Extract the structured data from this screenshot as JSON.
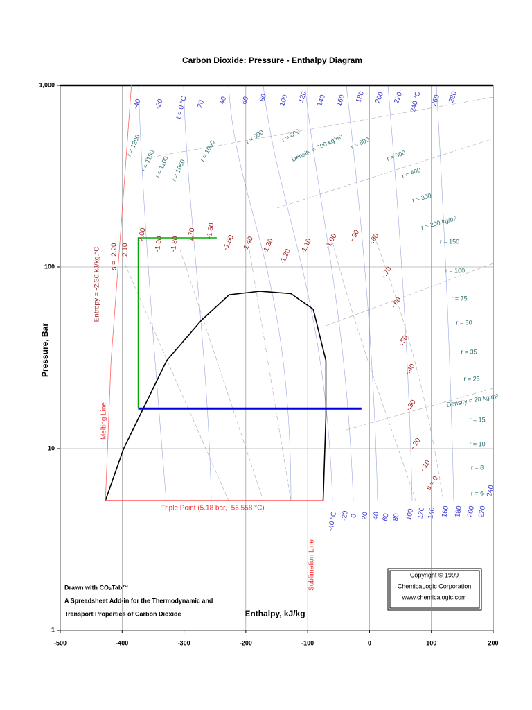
{
  "chart_data": {
    "type": "line",
    "title": "Carbon Dioxide: Pressure - Enthalpy Diagram",
    "x_label": "Enthalpy, kJ/kg",
    "y_label": "Pressure, Bar",
    "log_y": true,
    "grid": true,
    "xlim": [
      -500,
      200
    ],
    "ylim": [
      1,
      1000
    ],
    "xticks": [
      -500,
      -400,
      -300,
      -200,
      -100,
      0,
      100,
      200
    ],
    "yticks": [
      1,
      10,
      100,
      {
        "value": 1000,
        "label": "1,000"
      }
    ],
    "series": [
      {
        "color": "#000000",
        "x": [
          -427,
          -397.5,
          -328,
          -272,
          -227,
          -177,
          -127,
          -91,
          -70.5,
          -70.5,
          -75
        ],
        "values": [
          5.18,
          10,
          30.5,
          50.8,
          70.3,
          73.5,
          71.3,
          58.5,
          30.5,
          15.1,
          5.18
        ]
      },
      {
        "color": "#0000dd",
        "x": [
          -374,
          -13
        ],
        "values": [
          16.6,
          16.6
        ]
      },
      {
        "color": "#00aa00",
        "x": [
          -374,
          -374,
          -247
        ],
        "values": [
          16.6,
          144.6,
          144.6
        ]
      },
      {
        "color": "#ff3333",
        "x": [
          -427,
          -75
        ],
        "values": [
          5.18,
          5.18
        ]
      },
      {
        "color": "#ff6666",
        "x": [
          -427,
          -418,
          -400,
          -385
        ],
        "values": [
          5.18,
          30,
          200,
          1000
        ]
      }
    ],
    "isotherm_labels_top": [
      "-40",
      "-20",
      "t = 0 °C",
      "20",
      "40",
      "60",
      "80",
      "100",
      "120",
      "140",
      "160",
      "180",
      "200",
      "220",
      "240 °C",
      "260",
      "280"
    ],
    "isotherm_labels_bottom": [
      "-40 °C",
      "-20",
      "0",
      "20",
      "40",
      "60",
      "80",
      "100",
      "120",
      "140",
      "160",
      "180",
      "200",
      "220",
      "240"
    ],
    "density_labels": [
      "r = 1200",
      "r = 1150",
      "r = 1100",
      "r = 1050",
      "r = 1000",
      "r = 900",
      "r = 800",
      "Density = 700 kg/m³",
      "r = 600",
      "r = 500",
      "r = 400",
      "r = 300",
      "r = 200 kg/m³",
      "r = 150",
      "r = 100",
      "r = 75",
      "r = 50",
      "r = 35",
      "r = 25",
      "Density = 20 kg/m³",
      "r = 15",
      "r = 10",
      "r = 8",
      "r = 6"
    ],
    "entropy_labels": [
      "Entropy = -2.30 kJ/kg.°C",
      "s = -2.20",
      "-2.10",
      "-2.00",
      "-1.90",
      "-1.80",
      "-1.70",
      "-1.60",
      "-1.50",
      "-1.40",
      "-1.30",
      "-1.20",
      "-1.10",
      "-1.00",
      "-.90",
      "-.80",
      "-.70",
      "-.60",
      "-.50",
      "-.40",
      "-.30",
      "-.20",
      "-.10",
      "s = 0"
    ],
    "line_labels": [
      "Melting Line",
      "Triple Point (5.18 bar, -56.558 °C)",
      "Sublimation Line"
    ],
    "copyright": [
      "Copyright © 1999",
      "ChemicaLogic Corporation",
      "www.chemicalogic.com"
    ],
    "credit": [
      "Drawn with CO₂Tab™",
      "A Spreadsheet Add-in for the Thermodynamic and",
      "Transport Properties of Carbon Dioxide"
    ]
  }
}
